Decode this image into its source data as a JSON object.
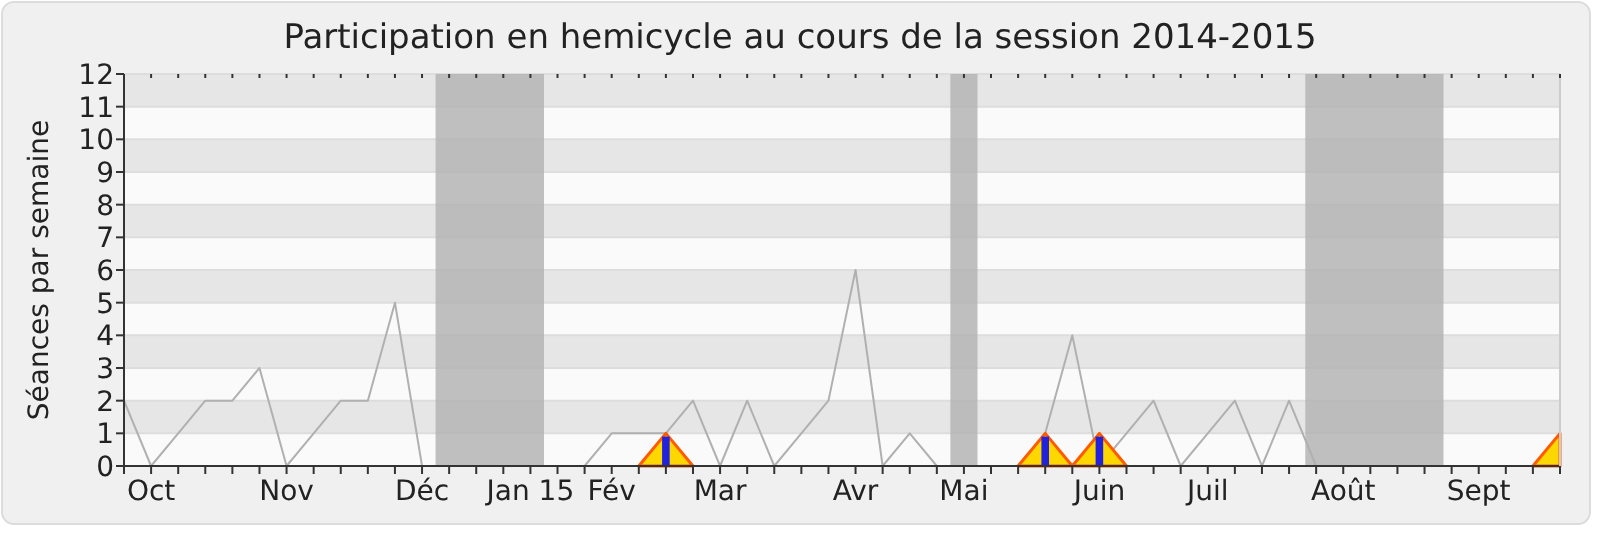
{
  "chart_data": {
    "type": "line",
    "title": "Participation en hemicycle au cours de la session 2014-2015",
    "ylabel": "Séances par semaine",
    "categories": [
      null,
      "Oct",
      null,
      null,
      null,
      null,
      "Nov",
      null,
      null,
      null,
      null,
      "Déc",
      null,
      null,
      null,
      "Jan 15",
      null,
      null,
      "Fév",
      null,
      null,
      null,
      "Mar",
      null,
      null,
      null,
      null,
      "Avr",
      null,
      null,
      null,
      "Mai",
      null,
      null,
      null,
      null,
      "Juin",
      null,
      null,
      null,
      "Juil",
      null,
      null,
      null,
      null,
      "Août",
      null,
      null,
      null,
      null,
      "Sept",
      null,
      null,
      null
    ],
    "ylim": [
      0,
      12
    ],
    "yticks": [
      0,
      1,
      2,
      3,
      4,
      5,
      6,
      7,
      8,
      9,
      10,
      11,
      12
    ],
    "grid": "y",
    "series": [
      {
        "color": "#b0b0b0",
        "values": [
          2,
          0,
          1,
          2,
          2,
          3,
          0,
          1,
          2,
          2,
          5,
          0,
          null,
          null,
          null,
          null,
          null,
          0,
          1,
          1,
          1,
          2,
          0,
          2,
          0,
          1,
          2,
          6,
          0,
          1,
          0,
          null,
          null,
          0,
          1,
          4,
          0,
          1,
          2,
          0,
          1,
          2,
          0,
          2,
          0,
          null,
          null,
          null,
          null,
          null,
          null,
          null,
          null,
          null
        ]
      },
      {
        "type": "area",
        "color": "#ffd700",
        "values": [
          null,
          null,
          null,
          null,
          null,
          null,
          null,
          null,
          null,
          null,
          null,
          null,
          null,
          null,
          null,
          null,
          null,
          null,
          null,
          0,
          1,
          0,
          null,
          null,
          null,
          null,
          null,
          null,
          null,
          null,
          null,
          null,
          null,
          0,
          1,
          0,
          1,
          0,
          null,
          null,
          null,
          null,
          null,
          null,
          null,
          null,
          null,
          null,
          null,
          null,
          null,
          null,
          0,
          1
        ]
      },
      {
        "type": "bar",
        "color": "#2222dd",
        "values": [
          null,
          null,
          null,
          null,
          null,
          null,
          null,
          null,
          null,
          null,
          null,
          null,
          null,
          null,
          null,
          null,
          null,
          null,
          null,
          null,
          0.9,
          null,
          null,
          null,
          null,
          null,
          null,
          null,
          null,
          null,
          null,
          null,
          null,
          null,
          0.9,
          null,
          0.9,
          null,
          null,
          null,
          null,
          null,
          null,
          null,
          null,
          null,
          null,
          null,
          null,
          null,
          null,
          null,
          null,
          null
        ]
      }
    ]
  }
}
